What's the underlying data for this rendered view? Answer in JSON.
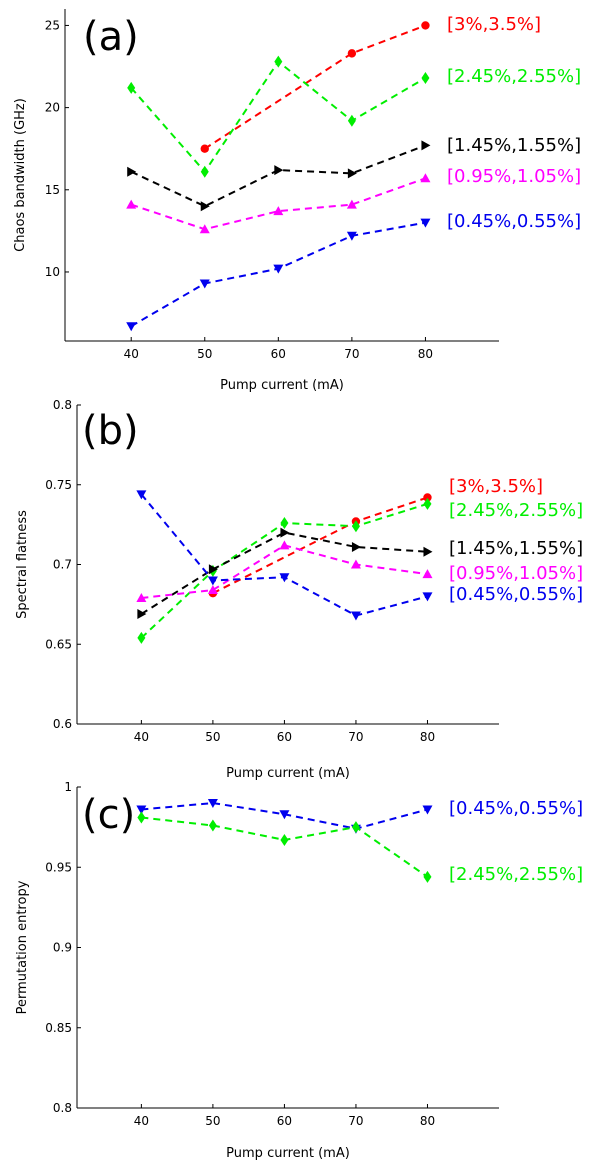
{
  "chart_data": [
    {
      "type": "line",
      "panel_label": "(a)",
      "xlabel": "Pump current (mA)",
      "ylabel": "Chaos bandwidth (GHz)",
      "x": [
        40,
        50,
        60,
        70,
        80
      ],
      "xlim": [
        31,
        90
      ],
      "ylim": [
        5.8,
        26
      ],
      "xticks": [
        40,
        50,
        60,
        70,
        80
      ],
      "yticks": [
        10,
        15,
        20,
        25
      ],
      "series": [
        {
          "name": "[3%,3.5%]",
          "color": "#ff0000",
          "marker": "circle",
          "x": [
            50,
            70,
            80
          ],
          "values": [
            17.5,
            23.3,
            25.0
          ]
        },
        {
          "name": "[2.45%,2.55%]",
          "color": "#00ee00",
          "marker": "diamond",
          "x": [
            40,
            50,
            60,
            70,
            80
          ],
          "values": [
            21.2,
            16.1,
            22.8,
            19.2,
            21.8
          ]
        },
        {
          "name": "[1.45%,1.55%]",
          "color": "#000000",
          "marker": "triangle-right",
          "x": [
            40,
            50,
            60,
            70,
            80
          ],
          "values": [
            16.1,
            14.0,
            16.2,
            16.0,
            17.7
          ]
        },
        {
          "name": "[0.95%,1.05%]",
          "color": "#ff00ff",
          "marker": "triangle-up",
          "x": [
            40,
            50,
            60,
            70,
            80
          ],
          "values": [
            14.1,
            12.6,
            13.7,
            14.1,
            15.7
          ]
        },
        {
          "name": "[0.45%,0.55%]",
          "color": "#0000ee",
          "marker": "triangle-down",
          "x": [
            40,
            50,
            60,
            70,
            80
          ],
          "values": [
            6.7,
            9.3,
            10.2,
            12.2,
            13.0
          ]
        }
      ]
    },
    {
      "type": "line",
      "panel_label": "(b)",
      "xlabel": "Pump current (mA)",
      "ylabel": "Spectral flatness",
      "x": [
        40,
        50,
        60,
        70,
        80
      ],
      "xlim": [
        31,
        90
      ],
      "ylim": [
        0.6,
        0.8
      ],
      "xticks": [
        40,
        50,
        60,
        70,
        80
      ],
      "yticks": [
        0.6,
        0.65,
        0.7,
        0.75,
        0.8
      ],
      "series": [
        {
          "name": "[3%,3.5%]",
          "color": "#ff0000",
          "marker": "circle",
          "x": [
            50,
            70,
            80
          ],
          "values": [
            0.682,
            0.727,
            0.742
          ]
        },
        {
          "name": "[2.45%,2.55%]",
          "color": "#00ee00",
          "marker": "diamond",
          "x": [
            40,
            50,
            60,
            70,
            80
          ],
          "values": [
            0.654,
            0.696,
            0.726,
            0.724,
            0.738
          ]
        },
        {
          "name": "[1.45%,1.55%]",
          "color": "#000000",
          "marker": "triangle-right",
          "x": [
            40,
            50,
            60,
            70,
            80
          ],
          "values": [
            0.669,
            0.697,
            0.72,
            0.711,
            0.708
          ]
        },
        {
          "name": "[0.95%,1.05%]",
          "color": "#ff00ff",
          "marker": "triangle-up",
          "x": [
            40,
            50,
            60,
            70,
            80
          ],
          "values": [
            0.679,
            0.684,
            0.712,
            0.7,
            0.694
          ]
        },
        {
          "name": "[0.45%,0.55%]",
          "color": "#0000ee",
          "marker": "triangle-down",
          "x": [
            40,
            50,
            60,
            70,
            80
          ],
          "values": [
            0.744,
            0.69,
            0.692,
            0.668,
            0.68
          ]
        }
      ]
    },
    {
      "type": "line",
      "panel_label": "(c)",
      "xlabel": "Pump current (mA)",
      "ylabel": "Permutation entropy",
      "x": [
        40,
        50,
        60,
        70,
        80
      ],
      "xlim": [
        31,
        90
      ],
      "ylim": [
        0.8,
        1.0
      ],
      "xticks": [
        40,
        50,
        60,
        70,
        80
      ],
      "yticks": [
        0.8,
        0.85,
        0.9,
        0.95,
        1
      ],
      "series": [
        {
          "name": "[0.45%,0.55%]",
          "color": "#0000ee",
          "marker": "triangle-down",
          "x": [
            40,
            50,
            60,
            70,
            80
          ],
          "values": [
            0.986,
            0.99,
            0.983,
            0.974,
            0.986
          ]
        },
        {
          "name": "[2.45%,2.55%]",
          "color": "#00ee00",
          "marker": "diamond",
          "x": [
            40,
            50,
            60,
            70,
            80
          ],
          "values": [
            0.981,
            0.976,
            0.967,
            0.975,
            0.944
          ]
        }
      ]
    }
  ]
}
